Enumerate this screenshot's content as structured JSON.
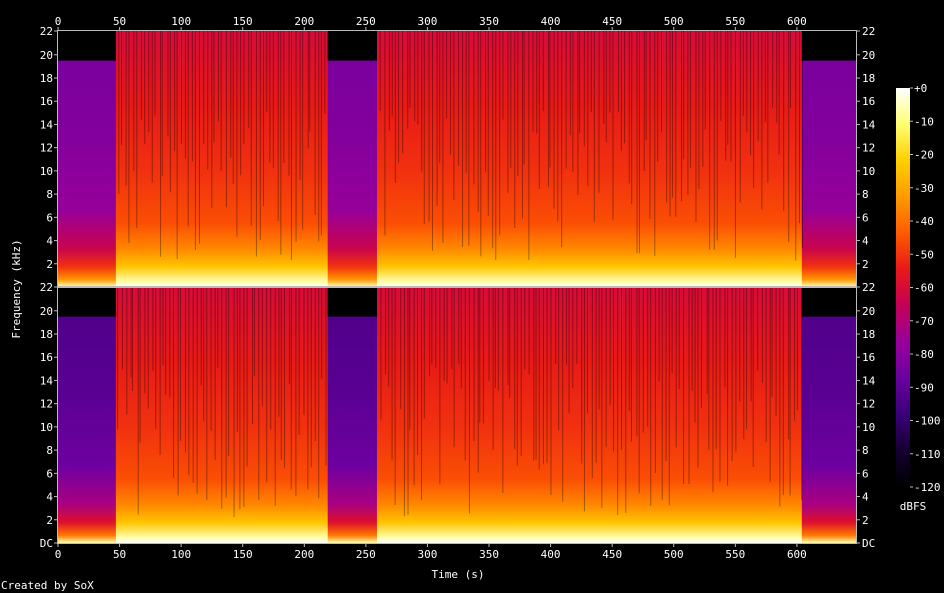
{
  "chart_data": {
    "type": "heatmap",
    "title": "",
    "xlabel": "Time (s)",
    "ylabel": "Frequency (kHz)",
    "colorbar_label": "dBFS",
    "x_ticks": [
      "0",
      "50",
      "100",
      "150",
      "200",
      "250",
      "300",
      "350",
      "400",
      "450",
      "500",
      "550",
      "600"
    ],
    "xlim": [
      0,
      648
    ],
    "channels": [
      {
        "y_ticks": [
          "2",
          "4",
          "6",
          "8",
          "10",
          "12",
          "14",
          "16",
          "18",
          "20",
          "22"
        ],
        "ylim": [
          0,
          22.05
        ],
        "quiet_segments": [
          [
            0,
            47
          ],
          [
            219,
            259
          ],
          [
            604,
            648
          ]
        ],
        "cutoff_khz": 19.5
      },
      {
        "y_ticks": [
          "DC",
          "2",
          "4",
          "6",
          "8",
          "10",
          "12",
          "14",
          "16",
          "18",
          "20",
          "22"
        ],
        "ylim": [
          0,
          22.05
        ],
        "quiet_segments": [
          [
            0,
            47
          ],
          [
            219,
            259
          ],
          [
            604,
            648
          ]
        ],
        "cutoff_khz": 19.5
      }
    ],
    "colorbar_ticks": [
      "+0",
      "-10",
      "-20",
      "-30",
      "-40",
      "-50",
      "-60",
      "-70",
      "-80",
      "-90",
      "-100",
      "-110",
      "-120"
    ],
    "colorbar_range": [
      -120,
      0
    ],
    "colormap": [
      "#000000",
      "#140030",
      "#3a0078",
      "#6a00a0",
      "#98009a",
      "#c40058",
      "#e81818",
      "#ff5a00",
      "#ff9a00",
      "#ffd000",
      "#ffff70",
      "#ffffff"
    ]
  },
  "footer": {
    "credit": "Created by SoX"
  }
}
